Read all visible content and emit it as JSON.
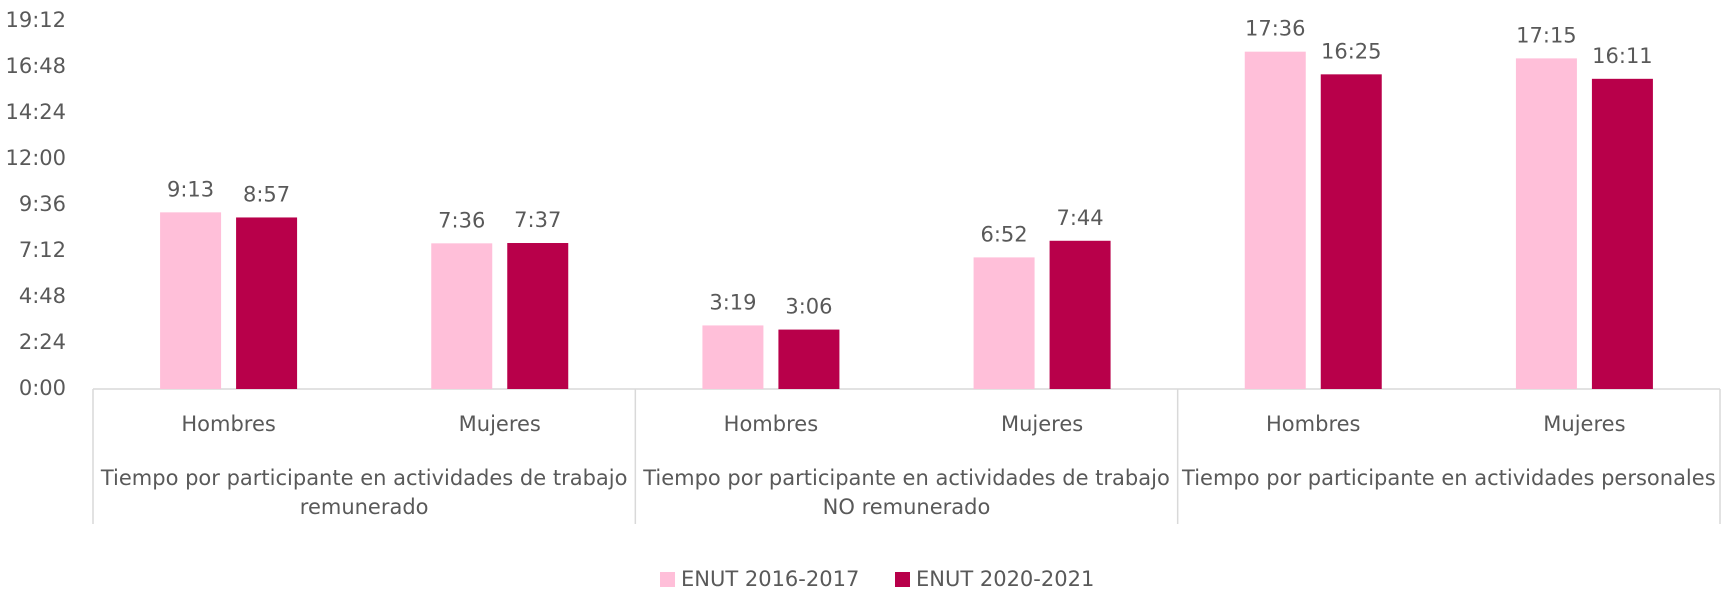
{
  "chart_data": {
    "type": "bar",
    "categories": [
      "Hombres",
      "Mujeres",
      "Hombres",
      "Mujeres",
      "Hombres",
      "Mujeres"
    ],
    "groups": [
      [
        "Tiempo por participante en actividades de trabajo",
        "remunerado"
      ],
      [
        "Tiempo por participante en actividades de trabajo",
        "NO remunerado"
      ],
      [
        "Tiempo por participante en actividades personales"
      ]
    ],
    "series": [
      {
        "name": "ENUT 2016-2017",
        "color": "#ffbfd9",
        "values": [
          9.2167,
          7.6,
          3.3167,
          6.8667,
          17.6,
          17.25
        ],
        "value_labels": [
          "9:13",
          "7:36",
          "3:19",
          "6:52",
          "17:36",
          "17:15"
        ]
      },
      {
        "name": "ENUT 2020-2021",
        "color": "#b8004a",
        "values": [
          8.95,
          7.6167,
          3.1,
          7.7333,
          16.4167,
          16.1833
        ],
        "value_labels": [
          "8:57",
          "7:37",
          "3:06",
          "7:44",
          "16:25",
          "16:11"
        ]
      }
    ],
    "ylim": [
      0,
      19.2
    ],
    "yticks": [
      {
        "value": 0,
        "label": "0:00"
      },
      {
        "value": 2.4,
        "label": "2:24"
      },
      {
        "value": 4.8,
        "label": "4:48"
      },
      {
        "value": 7.2,
        "label": "7:12"
      },
      {
        "value": 9.6,
        "label": "9:36"
      },
      {
        "value": 12,
        "label": "12:00"
      },
      {
        "value": 14.4,
        "label": "14:24"
      },
      {
        "value": 16.8,
        "label": "16:48"
      },
      {
        "value": 19.2,
        "label": "19:12"
      }
    ],
    "grid": false,
    "legend": "bottom"
  }
}
